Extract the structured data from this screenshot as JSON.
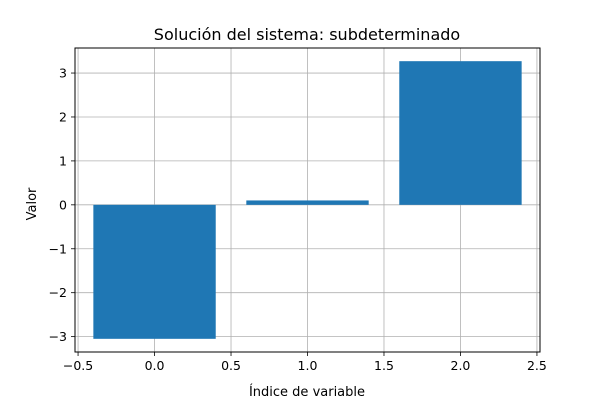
{
  "chart_data": {
    "type": "bar",
    "title": "Solución del sistema: subdeterminado",
    "xlabel": "Índice de variable",
    "ylabel": "Valor",
    "x": [
      0,
      1,
      2
    ],
    "values": [
      -3.05,
      0.1,
      3.27
    ],
    "bar_color": "#1f77b4",
    "xlim": [
      -0.52,
      2.52
    ],
    "ylim": [
      -3.35,
      3.57
    ],
    "xticks": [
      -0.5,
      0.0,
      0.5,
      1.0,
      1.5,
      2.0,
      2.5
    ],
    "xtick_labels": [
      "−0.5",
      "0.0",
      "0.5",
      "1.0",
      "1.5",
      "2.0",
      "2.5"
    ],
    "yticks": [
      -3,
      -2,
      -1,
      0,
      1,
      2,
      3
    ],
    "ytick_labels": [
      "−3",
      "−2",
      "−1",
      "0",
      "1",
      "2",
      "3"
    ],
    "grid": true
  }
}
